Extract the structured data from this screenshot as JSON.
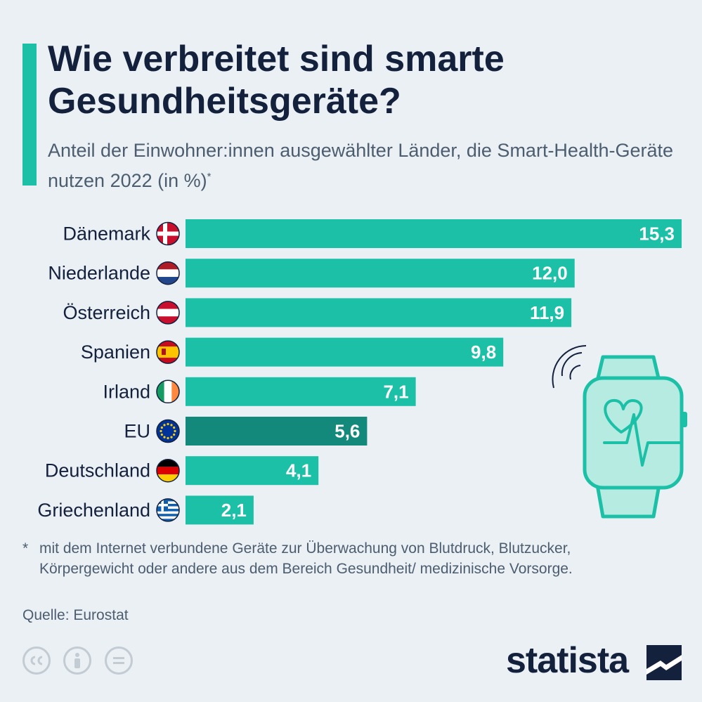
{
  "header": {
    "title": "Wie verbreitet sind smarte Gesundheitsgeräte?",
    "subtitle": "Anteil der Einwohner:innen ausgewählter Länder, die Smart-Health-Geräte nutzen 2022 (in %)",
    "subtitle_mark": "*"
  },
  "chart_data": {
    "type": "bar",
    "orientation": "horizontal",
    "categories": [
      "Dänemark",
      "Niederlande",
      "Österreich",
      "Spanien",
      "Irland",
      "EU",
      "Deutschland",
      "Griechenland"
    ],
    "values": [
      15.3,
      12.0,
      11.9,
      9.8,
      7.1,
      5.6,
      4.1,
      2.1
    ],
    "value_labels": [
      "15,3",
      "12,0",
      "11,9",
      "9,8",
      "7,1",
      "5,6",
      "4,1",
      "2,1"
    ],
    "highlight": "EU",
    "xlim": [
      0,
      15.3
    ],
    "grid": false,
    "legend": "none"
  },
  "colors": {
    "bar": "#1bc0a7",
    "bar_highlight": "#13897b",
    "title": "#14213d",
    "text": "#4c5d6f"
  },
  "footnote": {
    "mark": "*",
    "text": "mit dem Internet verbundene Geräte zur Überwachung von Blutdruck, Blutzucker, Körpergewicht oder andere aus dem Bereich Gesundheit/ medizinische Vorsorge."
  },
  "source": "Quelle: Eurostat",
  "brand": "statista",
  "icons": [
    "cc-icon",
    "attribution-icon",
    "no-derivatives-icon",
    "smartwatch-icon",
    "statista-logo-icon"
  ]
}
